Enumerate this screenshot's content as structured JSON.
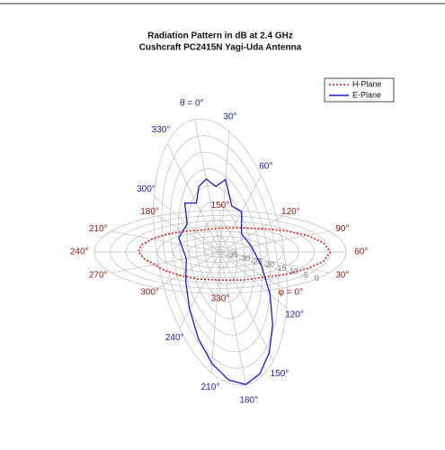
{
  "chart_data": {
    "type": "polar",
    "title": "Radiation Pattern in dB at 2.4 GHz",
    "subtitle": "Cushcraft PC2415N Yagi-Uda Antenna",
    "rlim": [
      -40,
      0
    ],
    "rticks": [
      -35,
      -30,
      -25,
      -20,
      -15,
      -10,
      -5,
      0
    ],
    "x": [
      0,
      15,
      30,
      45,
      60,
      75,
      90,
      105,
      120,
      135,
      150,
      165,
      180,
      195,
      210,
      225,
      240,
      255,
      270,
      285,
      300,
      315,
      330,
      345
    ],
    "h_angle_labels": [
      {
        "value": 0,
        "label": "φ = 0°"
      },
      {
        "value": 30,
        "label": "30°"
      },
      {
        "value": 60,
        "label": "60°"
      },
      {
        "value": 90,
        "label": "90°"
      },
      {
        "value": 120,
        "label": "120°"
      },
      {
        "value": 150,
        "label": "150°"
      },
      {
        "value": 180,
        "label": "180°"
      },
      {
        "value": 210,
        "label": "210°"
      },
      {
        "value": 240,
        "label": "240°"
      },
      {
        "value": 270,
        "label": "270°"
      },
      {
        "value": 300,
        "label": "300°"
      },
      {
        "value": 330,
        "label": "330°"
      }
    ],
    "v_angle_labels": [
      {
        "value": 0,
        "label": "θ = 0°"
      },
      {
        "value": 30,
        "label": "30°"
      },
      {
        "value": 60,
        "label": "60°"
      },
      {
        "value": 120,
        "label": "120°"
      },
      {
        "value": 150,
        "label": "150°"
      },
      {
        "value": 180,
        "label": "180°"
      },
      {
        "value": 210,
        "label": "210°"
      },
      {
        "value": 240,
        "label": "240°"
      },
      {
        "value": 300,
        "label": "300°"
      },
      {
        "value": 330,
        "label": "330°"
      }
    ],
    "h_label_color": "#8b1a1a",
    "v_label_color": "#1a1aa0",
    "series": [
      {
        "name": "H-Plane",
        "color": "#e02020",
        "dash": "dotted",
        "plane": "horizontal",
        "values": [
          -12,
          -10,
          -8,
          -6,
          -5,
          -6,
          -8,
          -11,
          -14,
          -16,
          -17,
          -18,
          -17,
          -16,
          -15,
          -14,
          -14,
          -15,
          -16,
          -15,
          -14,
          -13,
          -13,
          -12
        ]
      },
      {
        "name": "E-Plane",
        "color": "#1a1ad0",
        "dash": "solid",
        "plane": "vertical",
        "values": [
          -18,
          -20,
          -16,
          -22,
          -19,
          -24,
          -20,
          -15,
          -10,
          -6,
          -3,
          -1,
          0,
          -1,
          -3,
          -6,
          -10,
          -14,
          -18,
          -15,
          -20,
          -17,
          -22,
          -19
        ]
      }
    ],
    "legend": "upper right"
  }
}
